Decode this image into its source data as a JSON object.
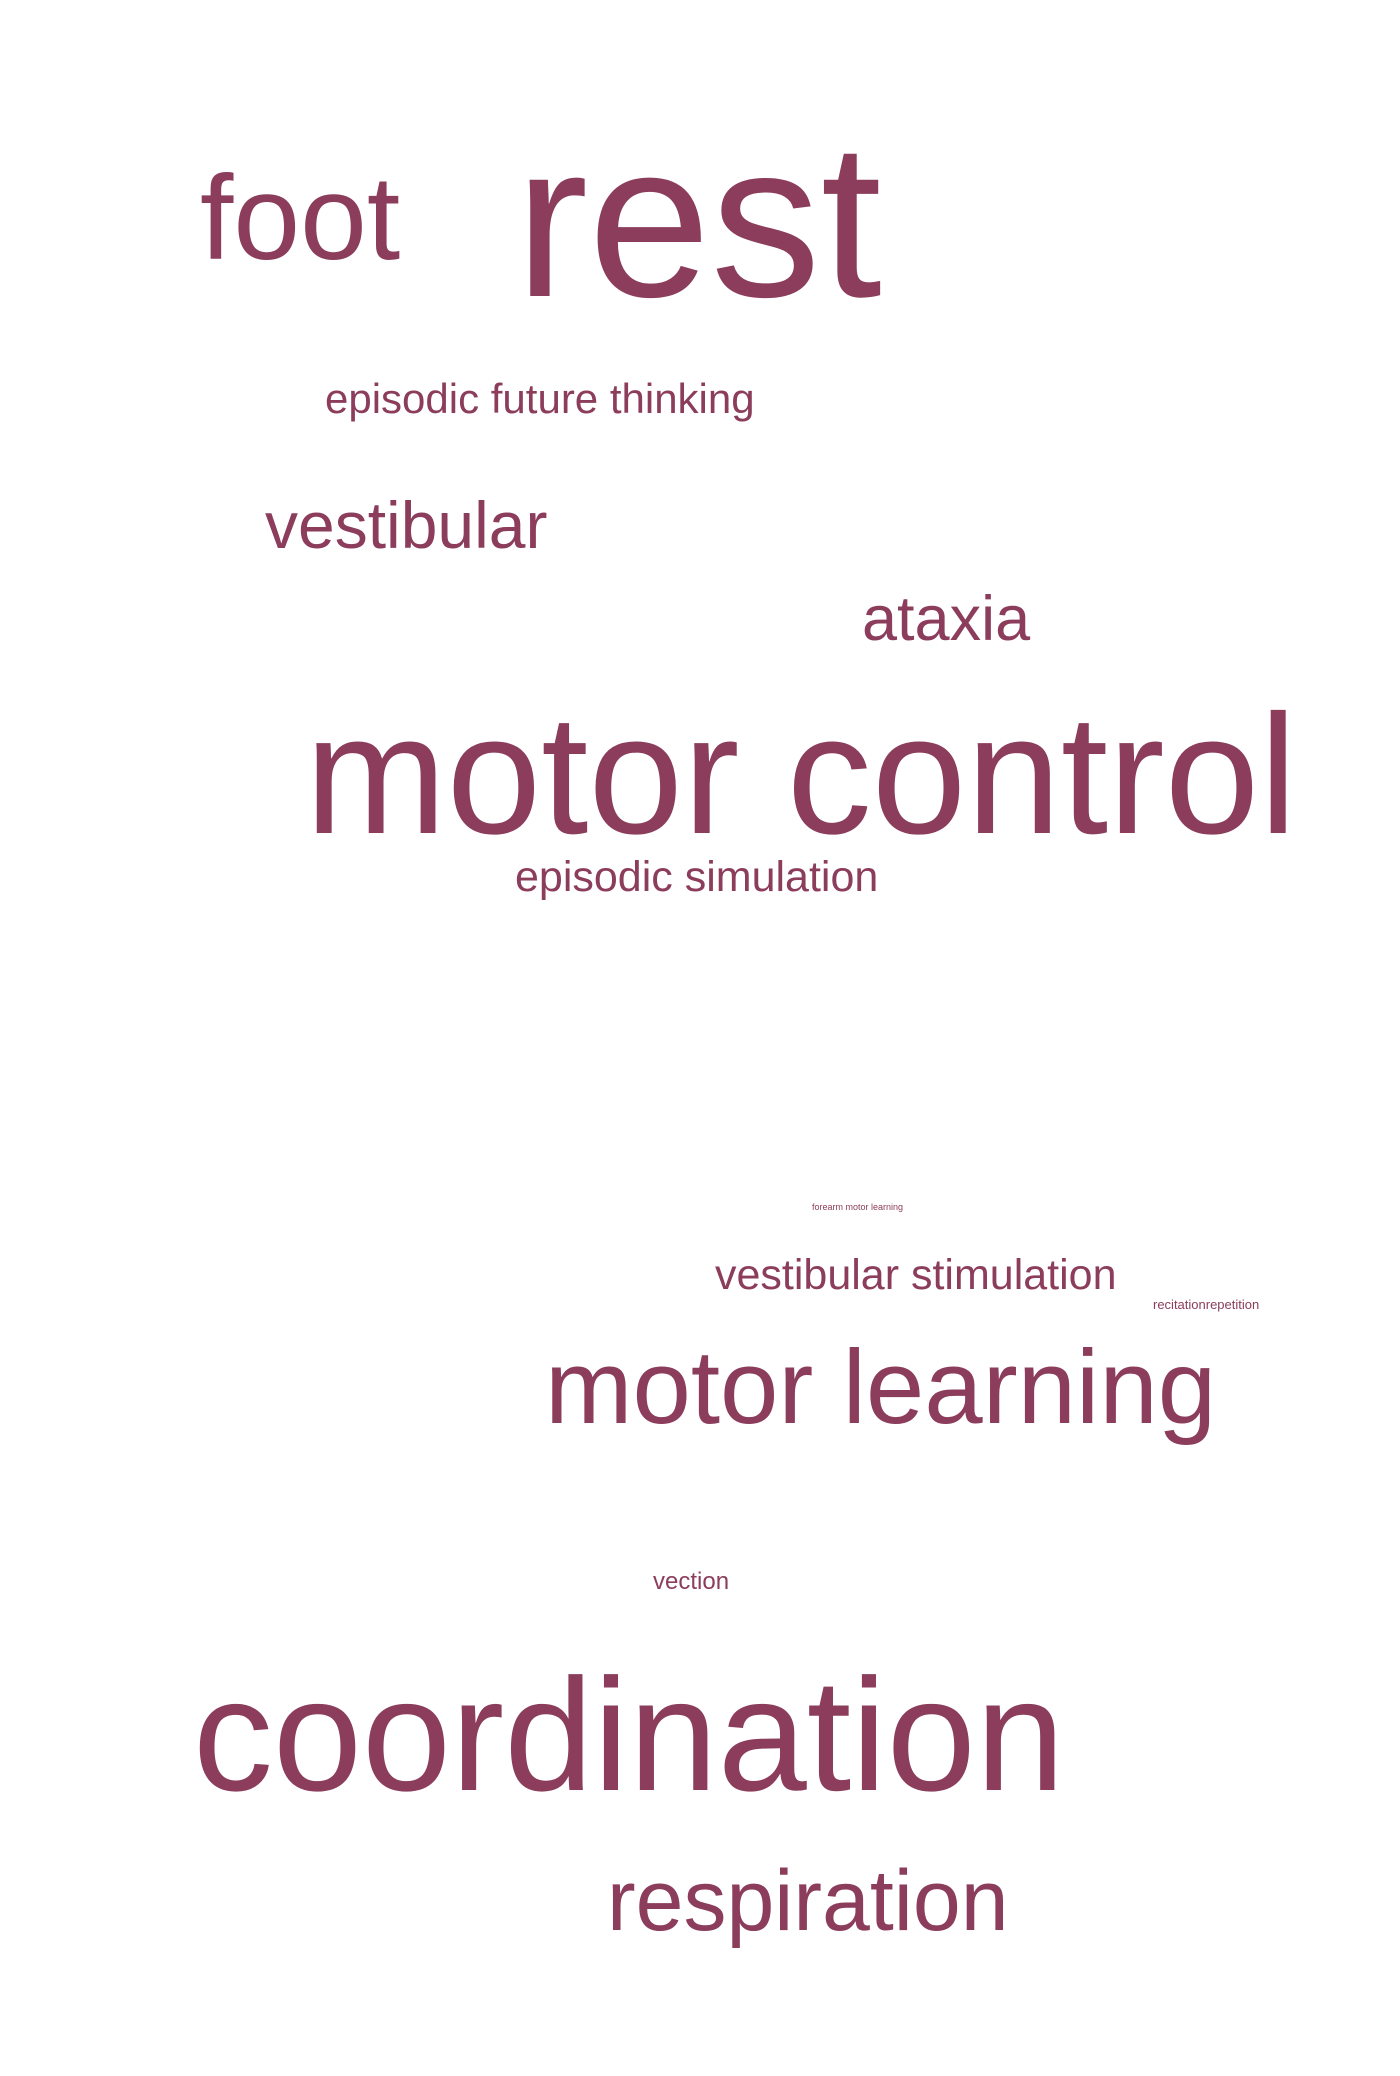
{
  "colors": {
    "word": "#8b3d5b",
    "background": "#ffffff"
  },
  "words": {
    "foot": "foot",
    "rest": "rest",
    "episodic_future_thinking": "episodic future thinking",
    "vestibular": "vestibular",
    "ataxia": "ataxia",
    "motor_control": "motor control",
    "episodic_simulation": "episodic simulation",
    "tiny_term": "forearm motor learning",
    "vestibular_stimulation": "vestibular stimulation",
    "recitation_repetition": "recitationrepetition",
    "motor_learning": "motor learning",
    "vection": "vection",
    "coordination": "coordination",
    "respiration": "respiration"
  }
}
